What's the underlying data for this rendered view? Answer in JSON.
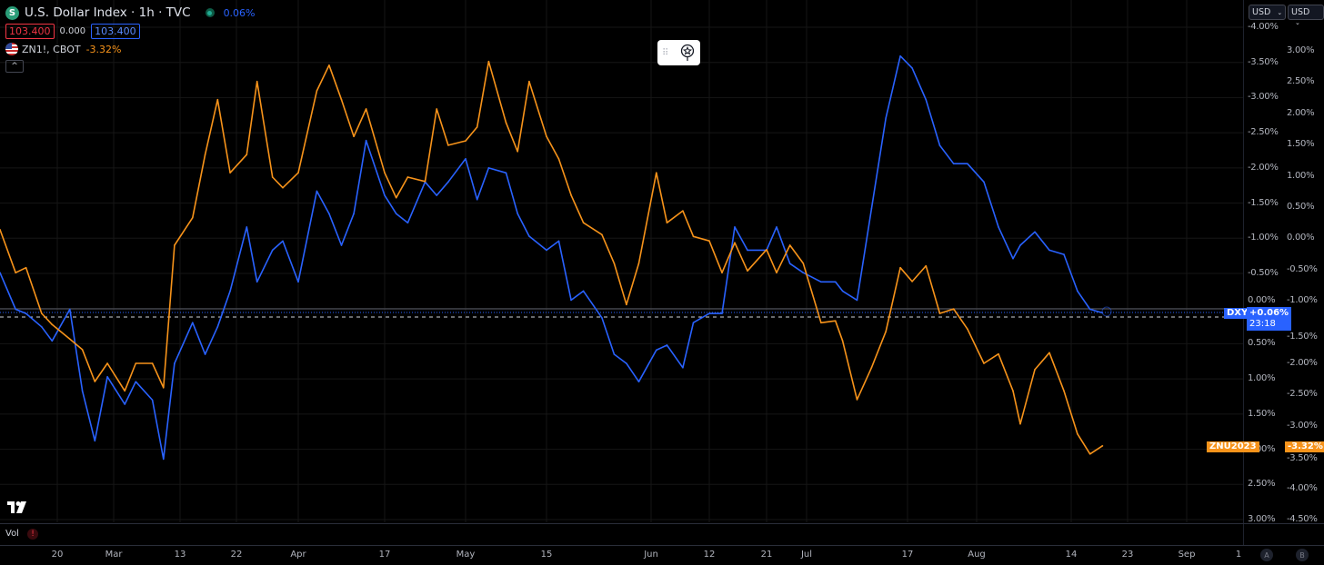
{
  "header": {
    "title": "U.S. Dollar Index · 1h · TVC",
    "logo_letter": "S",
    "change": "0.06%",
    "price_bid": "103.400",
    "spread": "0.000",
    "price_ask": "103.400",
    "compare_symbol": "ZN1!, CBOT",
    "compare_change": "-3.32%",
    "collapse_icon": "^"
  },
  "currency_buttons": [
    "USD",
    "USD"
  ],
  "price_tags": {
    "dxy_name": "DXY",
    "dxy_value": "+0.06%",
    "dxy_countdown": "23:18",
    "zn_name": "ZNU2023",
    "zn_value": "-3.32%"
  },
  "vol_pane": {
    "label": "Vol",
    "warning_icon": "!"
  },
  "scale_buttons": [
    "A",
    "B"
  ],
  "colors": {
    "dxy": "#2962ff",
    "zn": "#f7931a",
    "background": "#000000",
    "grid": "#161616"
  },
  "chart_data": {
    "type": "line",
    "grid": true,
    "x_ticks": [
      "20",
      "Mar",
      "13",
      "22",
      "Apr",
      "17",
      "May",
      "15",
      "Jun",
      "12",
      "21",
      "Jul",
      "17",
      "Aug",
      "14",
      "23",
      "Sep",
      "1"
    ],
    "left_axis": {
      "inverted": true,
      "ylim": [
        -4.0,
        3.0
      ],
      "ticks": [
        "-4.00%",
        "-3.50%",
        "-3.00%",
        "-2.50%",
        "-2.00%",
        "-1.50%",
        "-1.00%",
        "-0.50%",
        "0.00%",
        "0.50%",
        "1.00%",
        "1.50%",
        "2.00%",
        "2.50%",
        "3.00%"
      ]
    },
    "right_axis": {
      "inverted": false,
      "ylim": [
        -4.5,
        3.0
      ],
      "ticks": [
        "3.00%",
        "2.50%",
        "2.00%",
        "1.50%",
        "1.00%",
        "0.50%",
        "0.00%",
        "-0.50%",
        "-1.00%",
        "-1.50%",
        "-2.00%",
        "-2.50%",
        "-3.00%",
        "-3.50%",
        "-4.00%",
        "-4.50%"
      ]
    },
    "x": [
      "2023-02-09",
      "2023-02-12",
      "2023-02-14",
      "2023-02-17",
      "2023-02-19",
      "2023-02-22",
      "2023-02-24",
      "2023-02-26",
      "2023-02-28",
      "2023-03-03",
      "2023-03-05",
      "2023-03-08",
      "2023-03-10",
      "2023-03-12",
      "2023-03-15",
      "2023-03-17",
      "2023-03-19",
      "2023-03-21",
      "2023-03-24",
      "2023-03-26",
      "2023-03-29",
      "2023-03-31",
      "2023-04-03",
      "2023-04-06",
      "2023-04-08",
      "2023-04-10",
      "2023-04-12",
      "2023-04-14",
      "2023-04-17",
      "2023-04-19",
      "2023-04-21",
      "2023-04-24",
      "2023-04-26",
      "2023-04-28",
      "2023-05-01",
      "2023-05-03",
      "2023-05-05",
      "2023-05-08",
      "2023-05-10",
      "2023-05-12",
      "2023-05-15",
      "2023-05-17",
      "2023-05-19",
      "2023-05-21",
      "2023-05-24",
      "2023-05-26",
      "2023-05-28",
      "2023-05-30",
      "2023-06-02",
      "2023-06-04",
      "2023-06-07",
      "2023-06-09",
      "2023-06-12",
      "2023-06-14",
      "2023-06-16",
      "2023-06-18",
      "2023-06-21",
      "2023-06-24",
      "2023-06-28",
      "2023-07-02",
      "2023-07-05",
      "2023-07-07",
      "2023-07-08",
      "2023-07-10",
      "2023-07-12",
      "2023-07-14",
      "2023-07-16",
      "2023-07-18",
      "2023-07-21",
      "2023-07-24",
      "2023-07-27",
      "2023-07-30",
      "2023-08-02",
      "2023-08-04",
      "2023-08-06",
      "2023-08-07",
      "2023-08-09",
      "2023-08-11",
      "2023-08-13",
      "2023-08-15",
      "2023-08-17",
      "2023-08-19"
    ],
    "series": [
      {
        "name": "DXY",
        "axis": "left",
        "color": "#2962ff",
        "values": [
          -0.51,
          0.01,
          0.07,
          0.26,
          0.46,
          0.01,
          1.17,
          1.88,
          0.97,
          1.36,
          1.04,
          1.3,
          2.14,
          0.78,
          0.2,
          0.65,
          0.26,
          -0.25,
          -1.16,
          -0.38,
          -0.83,
          -0.96,
          -0.38,
          -1.67,
          -1.35,
          -0.9,
          -1.35,
          -2.39,
          -1.61,
          -1.35,
          -1.22,
          -1.8,
          -1.61,
          -1.8,
          -2.13,
          -1.55,
          -2.0,
          -1.93,
          -1.35,
          -1.03,
          -0.83,
          -0.96,
          -0.12,
          -0.25,
          0.13,
          0.65,
          0.78,
          1.04,
          0.59,
          0.52,
          0.84,
          0.2,
          0.07,
          0.07,
          -1.16,
          -0.83,
          -0.83,
          -1.16,
          -0.64,
          -0.51,
          -0.38,
          -0.38,
          -0.25,
          -0.12,
          -1.42,
          -2.71,
          -3.59,
          -3.42,
          -2.97,
          -2.32,
          -2.06,
          -2.06,
          -1.8,
          -1.16,
          -0.71,
          -0.9,
          -1.09,
          -0.83,
          -0.77,
          -0.25,
          0.01,
          0.06
        ]
      },
      {
        "name": "ZNU2023",
        "axis": "right",
        "color": "#f7931a",
        "values": [
          0.14,
          -0.55,
          -0.47,
          -1.2,
          -1.38,
          -1.61,
          -1.78,
          -2.29,
          -2.0,
          -2.44,
          -2.0,
          -2.0,
          -2.39,
          -0.11,
          0.33,
          1.34,
          2.22,
          1.05,
          1.34,
          2.51,
          0.98,
          0.81,
          1.05,
          2.36,
          2.77,
          2.22,
          1.63,
          2.07,
          1.05,
          0.65,
          0.98,
          0.91,
          2.07,
          1.49,
          1.56,
          1.78,
          2.83,
          1.85,
          1.39,
          2.51,
          1.63,
          1.27,
          0.69,
          0.25,
          0.06,
          -0.4,
          -1.06,
          -0.4,
          1.05,
          0.25,
          0.44,
          0.03,
          -0.04,
          -0.55,
          -0.07,
          -0.52,
          -0.18,
          -0.55,
          -0.11,
          -0.4,
          -1.35,
          -1.32,
          -1.64,
          -2.58,
          -2.07,
          -1.49,
          -0.47,
          -0.69,
          -0.44,
          -1.2,
          -1.13,
          -1.45,
          -2.0,
          -1.85,
          -2.44,
          -2.97,
          -2.1,
          -1.83,
          -2.44,
          -3.13,
          -3.45,
          -3.32
        ]
      }
    ]
  }
}
